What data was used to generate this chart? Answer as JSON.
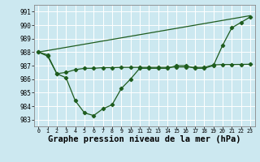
{
  "bg_color": "#cce8f0",
  "grid_color": "#ffffff",
  "line_color": "#1e5c1e",
  "xlabel": "Graphe pression niveau de la mer (hPa)",
  "xlabel_fontsize": 7.5,
  "ylim": [
    982.5,
    991.5
  ],
  "xlim": [
    -0.5,
    23.5
  ],
  "yticks": [
    983,
    984,
    985,
    986,
    987,
    988,
    989,
    990,
    991
  ],
  "xticks": [
    0,
    1,
    2,
    3,
    4,
    5,
    6,
    7,
    8,
    9,
    10,
    11,
    12,
    13,
    14,
    15,
    16,
    17,
    18,
    19,
    20,
    21,
    22,
    23
  ],
  "series1_x": [
    0,
    1,
    2,
    3,
    4,
    5,
    6,
    7,
    8,
    9,
    10,
    11,
    12,
    13,
    14,
    15,
    16,
    17,
    18,
    19,
    20,
    21,
    22,
    23
  ],
  "series1_y": [
    988.0,
    987.7,
    986.4,
    986.1,
    984.4,
    983.5,
    983.3,
    983.8,
    984.1,
    985.3,
    986.0,
    986.8,
    986.8,
    986.8,
    986.8,
    987.0,
    987.0,
    986.8,
    986.8,
    987.0,
    988.5,
    989.8,
    990.2,
    990.6
  ],
  "series2_x": [
    0,
    1,
    2,
    3,
    4,
    5,
    6,
    7,
    8,
    9,
    10,
    11,
    12,
    13,
    14,
    15,
    16,
    17,
    18,
    19,
    20,
    21,
    22,
    23
  ],
  "series2_y": [
    988.0,
    987.8,
    986.4,
    986.5,
    986.7,
    986.8,
    986.8,
    986.85,
    986.85,
    986.87,
    986.87,
    986.87,
    986.87,
    986.87,
    986.87,
    986.9,
    986.9,
    986.87,
    986.87,
    987.05,
    987.08,
    987.08,
    987.09,
    987.1
  ],
  "series3_x": [
    0,
    23
  ],
  "series3_y": [
    988.0,
    990.7
  ]
}
